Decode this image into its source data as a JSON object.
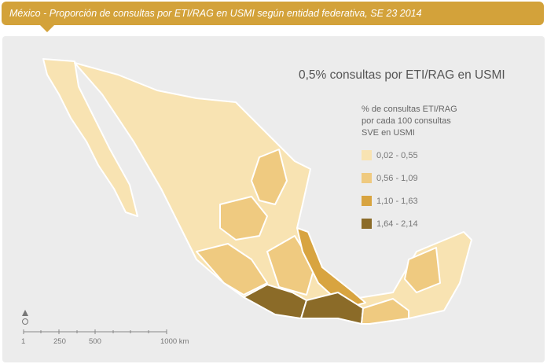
{
  "header": {
    "title": "México - Proporción de consultas por ETI/RAG en USMI según entidad federativa, SE 23 2014"
  },
  "map": {
    "title": "0,5% consultas por ETI/RAG en USMI"
  },
  "legend": {
    "title_lines": [
      "% de consultas ETI/RAG",
      "por cada 100 consultas",
      "SVE en USMI"
    ],
    "items": [
      {
        "label": "0,02  -  0,55",
        "color": "#f8e3b2"
      },
      {
        "label": "0,56  -  1,09",
        "color": "#efca80"
      },
      {
        "label": "1,10  -  1,63",
        "color": "#d8a440"
      },
      {
        "label": "1,64  -  2,14",
        "color": "#8b6b28"
      }
    ]
  },
  "scale": {
    "labels": [
      "1",
      "250",
      "500",
      "1000 km"
    ]
  },
  "north_icon": "north-arrow-icon"
}
